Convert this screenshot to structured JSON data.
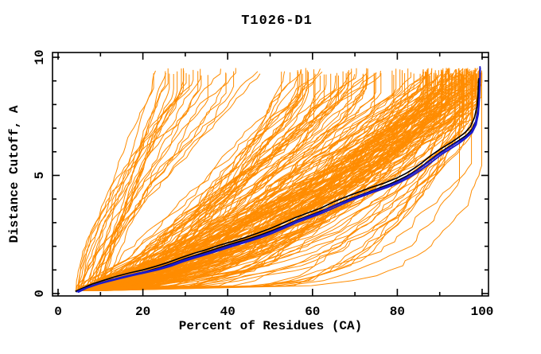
{
  "figure": {
    "title": "T1026-D1"
  },
  "colors": {
    "background": "#ffffff",
    "axis": "#000000",
    "model_ensemble": "#ff8c00",
    "highlight_black": "#000000",
    "highlight_blue": "#1a1acc"
  },
  "chart_data": {
    "type": "line",
    "title": "T1026-D1",
    "xlabel": "Percent of Residues (CA)",
    "ylabel": "Distance Cutoff, A",
    "xlim": [
      0,
      100
    ],
    "ylim": [
      0,
      10
    ],
    "x_major_ticks": [
      0,
      20,
      40,
      60,
      80,
      100
    ],
    "x_minor_ticks": [
      10,
      30,
      50,
      70,
      90
    ],
    "y_major_ticks": [
      0,
      5,
      10
    ],
    "y_minor_ticks": [
      1,
      2,
      3,
      4,
      6,
      7,
      8,
      9
    ],
    "grid": false,
    "legend": "none",
    "description": "CASP-style cumulative distance plot: each curve shows percent of CA residues (x) under a distance cutoff in Angstroms (y). A large ensemble of orange server-model curves, with two black and two blue highlighted model curves.",
    "series": [
      {
        "name": "highlight-black-1",
        "color": "#000000",
        "width": 1.6,
        "points": [
          [
            4.2,
            0.1
          ],
          [
            6,
            0.25
          ],
          [
            8,
            0.4
          ],
          [
            10,
            0.52
          ],
          [
            12,
            0.63
          ],
          [
            14,
            0.74
          ],
          [
            17,
            0.88
          ],
          [
            20,
            1.0
          ],
          [
            23,
            1.15
          ],
          [
            26,
            1.32
          ],
          [
            29,
            1.52
          ],
          [
            32,
            1.7
          ],
          [
            35,
            1.86
          ],
          [
            38,
            2.04
          ],
          [
            41,
            2.2
          ],
          [
            44,
            2.36
          ],
          [
            47,
            2.55
          ],
          [
            50,
            2.75
          ],
          [
            53,
            2.98
          ],
          [
            56,
            3.22
          ],
          [
            59,
            3.42
          ],
          [
            62,
            3.62
          ],
          [
            65,
            3.88
          ],
          [
            68,
            4.1
          ],
          [
            71,
            4.3
          ],
          [
            74,
            4.5
          ],
          [
            77,
            4.68
          ],
          [
            80,
            4.9
          ],
          [
            82,
            5.08
          ],
          [
            84,
            5.3
          ],
          [
            86,
            5.56
          ],
          [
            88,
            5.85
          ],
          [
            90,
            6.1
          ],
          [
            92,
            6.32
          ],
          [
            94,
            6.55
          ],
          [
            95.8,
            6.78
          ],
          [
            97.2,
            7.05
          ],
          [
            98.2,
            7.45
          ],
          [
            98.8,
            7.95
          ],
          [
            99.05,
            8.5
          ],
          [
            99.15,
            9.05
          ]
        ]
      },
      {
        "name": "highlight-black-2",
        "color": "#000000",
        "width": 1.6,
        "points": [
          [
            4.3,
            0.08
          ],
          [
            7,
            0.27
          ],
          [
            9.5,
            0.42
          ],
          [
            12,
            0.55
          ],
          [
            15,
            0.68
          ],
          [
            18,
            0.82
          ],
          [
            21,
            0.95
          ],
          [
            24,
            1.1
          ],
          [
            27,
            1.28
          ],
          [
            30,
            1.48
          ],
          [
            33,
            1.65
          ],
          [
            36,
            1.82
          ],
          [
            39,
            2.0
          ],
          [
            42,
            2.16
          ],
          [
            45,
            2.32
          ],
          [
            48,
            2.5
          ],
          [
            51,
            2.7
          ],
          [
            54,
            2.92
          ],
          [
            57,
            3.15
          ],
          [
            60,
            3.35
          ],
          [
            63,
            3.56
          ],
          [
            66,
            3.8
          ],
          [
            69,
            4.02
          ],
          [
            72,
            4.22
          ],
          [
            75,
            4.42
          ],
          [
            78,
            4.62
          ],
          [
            80.5,
            4.82
          ],
          [
            82.5,
            5.0
          ],
          [
            84.5,
            5.22
          ],
          [
            86.5,
            5.48
          ],
          [
            88.5,
            5.75
          ],
          [
            90.5,
            6.02
          ],
          [
            92.5,
            6.25
          ],
          [
            94.5,
            6.48
          ],
          [
            96.3,
            6.7
          ],
          [
            97.6,
            6.95
          ],
          [
            98.5,
            7.3
          ],
          [
            99,
            7.8
          ],
          [
            99.2,
            8.4
          ],
          [
            99.25,
            9.1
          ]
        ]
      },
      {
        "name": "highlight-blue-1",
        "color": "#1a1acc",
        "width": 1.8,
        "points": [
          [
            4.5,
            0.08
          ],
          [
            6,
            0.2
          ],
          [
            8,
            0.33
          ],
          [
            10,
            0.45
          ],
          [
            12,
            0.55
          ],
          [
            14,
            0.65
          ],
          [
            17,
            0.78
          ],
          [
            20,
            0.9
          ],
          [
            23,
            1.02
          ],
          [
            26,
            1.18
          ],
          [
            29,
            1.38
          ],
          [
            32,
            1.55
          ],
          [
            35,
            1.7
          ],
          [
            38,
            1.88
          ],
          [
            41,
            2.05
          ],
          [
            44,
            2.2
          ],
          [
            47,
            2.38
          ],
          [
            50,
            2.58
          ],
          [
            53,
            2.8
          ],
          [
            56,
            3.05
          ],
          [
            59,
            3.25
          ],
          [
            62,
            3.45
          ],
          [
            65,
            3.7
          ],
          [
            68,
            3.92
          ],
          [
            71,
            4.12
          ],
          [
            74,
            4.32
          ],
          [
            77,
            4.5
          ],
          [
            80,
            4.72
          ],
          [
            82,
            4.9
          ],
          [
            84,
            5.12
          ],
          [
            86,
            5.38
          ],
          [
            88,
            5.65
          ],
          [
            90,
            5.92
          ],
          [
            92,
            6.15
          ],
          [
            94,
            6.38
          ],
          [
            96,
            6.6
          ],
          [
            97.5,
            6.85
          ],
          [
            98.4,
            7.2
          ],
          [
            99,
            7.7
          ],
          [
            99.3,
            8.3
          ],
          [
            99.45,
            9.0
          ],
          [
            99.5,
            9.6
          ]
        ]
      },
      {
        "name": "highlight-blue-2",
        "color": "#1a1acc",
        "width": 1.8,
        "points": [
          [
            4.8,
            0.06
          ],
          [
            7,
            0.25
          ],
          [
            9.5,
            0.4
          ],
          [
            12,
            0.52
          ],
          [
            14.5,
            0.63
          ],
          [
            17.5,
            0.76
          ],
          [
            20.5,
            0.88
          ],
          [
            23.5,
            1.0
          ],
          [
            26.5,
            1.15
          ],
          [
            29.5,
            1.35
          ],
          [
            32.5,
            1.52
          ],
          [
            35.5,
            1.68
          ],
          [
            38.5,
            1.85
          ],
          [
            41.5,
            2.02
          ],
          [
            44.5,
            2.18
          ],
          [
            47.5,
            2.35
          ],
          [
            50.5,
            2.55
          ],
          [
            53.5,
            2.78
          ],
          [
            56.5,
            3.02
          ],
          [
            59.5,
            3.22
          ],
          [
            62.5,
            3.42
          ],
          [
            65.5,
            3.66
          ],
          [
            68.5,
            3.9
          ],
          [
            71.5,
            4.1
          ],
          [
            74.5,
            4.3
          ],
          [
            77.5,
            4.48
          ],
          [
            80.5,
            4.7
          ],
          [
            82.5,
            4.88
          ],
          [
            84.5,
            5.1
          ],
          [
            86.5,
            5.35
          ],
          [
            88.5,
            5.62
          ],
          [
            90.5,
            5.9
          ],
          [
            92.5,
            6.12
          ],
          [
            94.5,
            6.35
          ],
          [
            96.2,
            6.58
          ],
          [
            97.7,
            6.82
          ],
          [
            98.6,
            7.15
          ],
          [
            99.1,
            7.6
          ],
          [
            99.35,
            8.2
          ],
          [
            99.5,
            8.9
          ],
          [
            99.55,
            9.55
          ]
        ]
      }
    ],
    "ensemble": {
      "name": "server-models-orange",
      "color": "#ff8c00",
      "width": 1,
      "count": 215,
      "seed": 1026,
      "x_start_range": [
        4,
        11
      ],
      "y_range": [
        0.12,
        9.55
      ],
      "steps": 44,
      "x_end_groups": [
        {
          "weight": 0.14,
          "range": [
            22,
            52
          ],
          "shape": [
            1.0,
            1.6
          ]
        },
        {
          "weight": 0.26,
          "range": [
            52,
            86
          ],
          "shape": [
            0.55,
            0.95
          ]
        },
        {
          "weight": 0.55,
          "range": [
            86,
            100
          ],
          "shape": [
            0.42,
            0.8
          ]
        },
        {
          "weight": 0.05,
          "range": [
            93,
            100
          ],
          "shape": [
            0.12,
            0.3
          ]
        }
      ]
    }
  }
}
